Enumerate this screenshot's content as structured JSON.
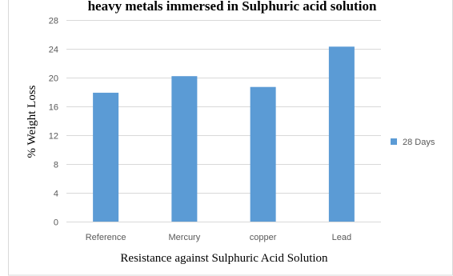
{
  "chart_data": {
    "type": "bar",
    "title": "heavy metals immersed in Sulphuric acid solution",
    "xlabel": "Resistance against Sulphuric Acid Solution",
    "ylabel": "% Weight Loss",
    "categories": [
      "Reference",
      "Mercury",
      "copper",
      "Lead"
    ],
    "series": [
      {
        "name": "28 Days",
        "values": [
          17.9,
          20.2,
          18.7,
          24.3
        ],
        "color": "#5b9bd5"
      }
    ],
    "ylim": [
      0,
      28
    ],
    "yticks": [
      0,
      4,
      8,
      12,
      16,
      20,
      24,
      28
    ],
    "grid": true,
    "legend": "right"
  }
}
